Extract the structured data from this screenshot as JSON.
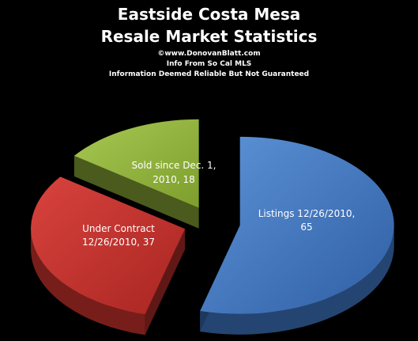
{
  "chart_data": {
    "type": "pie",
    "style": "3d-exploded",
    "title": "Eastside Costa Mesa",
    "subtitle": "Resale Market Statistics",
    "notes": [
      "©www.DonovanBlatt.com",
      "Info  From So Cal MLS",
      "Information Deemed Reliable But Not Guaranteed"
    ],
    "slices": [
      {
        "label_line1": "Listings 12/26/2010,",
        "label_line2": "65",
        "value": 65,
        "color": "#3a6fb8"
      },
      {
        "label_line1": "Under Contract",
        "label_line2": "12/26/2010, 37",
        "value": 37,
        "color": "#c0302c"
      },
      {
        "label_line1": "Sold since  Dec. 1,",
        "label_line2": "2010, 18",
        "value": 18,
        "color": "#93b63a"
      }
    ]
  }
}
